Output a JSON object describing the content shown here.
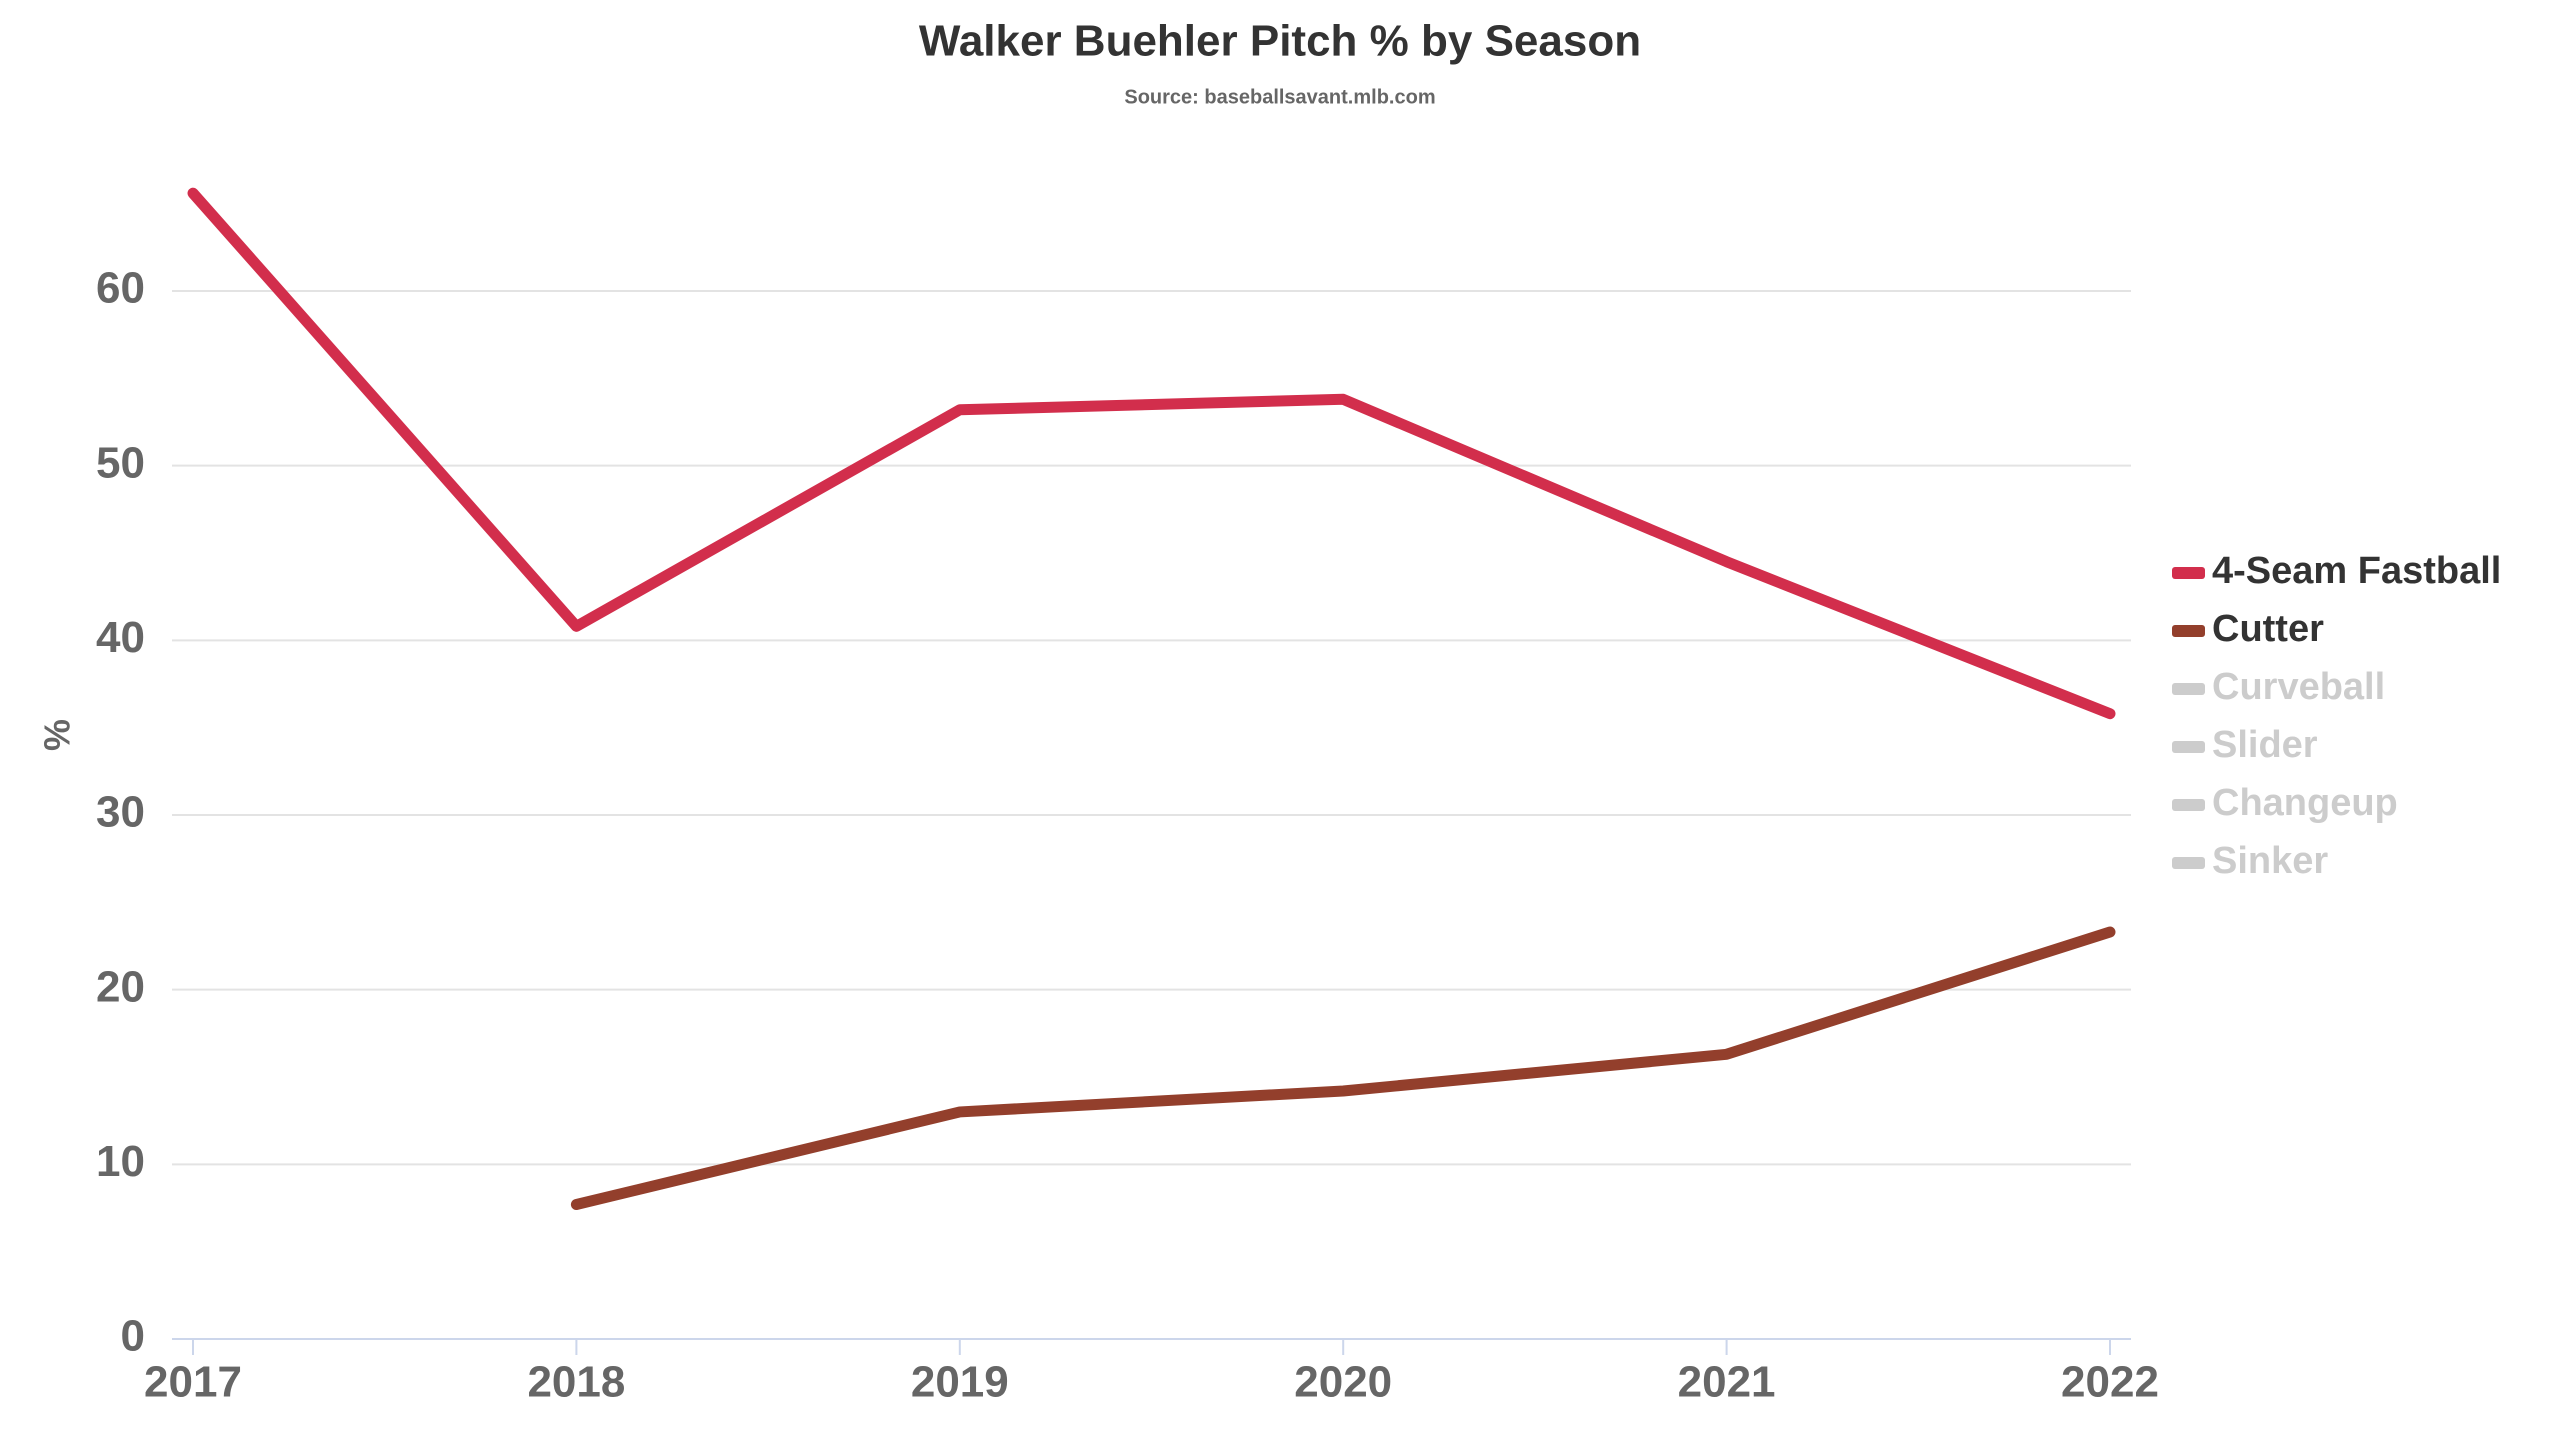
{
  "chart_data": {
    "type": "line",
    "title": "Walker Buehler Pitch % by Season",
    "subtitle": "Source: baseballsavant.mlb.com",
    "y_label": "%",
    "categories": [
      "2017",
      "2018",
      "2019",
      "2020",
      "2021",
      "2022"
    ],
    "series": [
      {
        "name": "4-Seam Fastball",
        "color": "#d22e4c",
        "visible": true,
        "values": [
          65.6,
          40.8,
          53.2,
          53.8,
          44.5,
          35.8
        ]
      },
      {
        "name": "Cutter",
        "color": "#933f2c",
        "visible": true,
        "values": [
          null,
          7.7,
          13.0,
          14.2,
          16.3,
          23.3
        ]
      },
      {
        "name": "Curveball",
        "color": "#cccccc",
        "visible": false,
        "values": [
          null,
          null,
          null,
          null,
          null,
          null
        ]
      },
      {
        "name": "Slider",
        "color": "#cccccc",
        "visible": false,
        "values": [
          null,
          null,
          null,
          null,
          null,
          null
        ]
      },
      {
        "name": "Changeup",
        "color": "#cccccc",
        "visible": false,
        "values": [
          null,
          null,
          null,
          null,
          null,
          null
        ]
      },
      {
        "name": "Sinker",
        "color": "#cccccc",
        "visible": false,
        "values": [
          null,
          null,
          null,
          null,
          null,
          null
        ]
      }
    ],
    "ylim": [
      0,
      66
    ],
    "yticks": [
      0,
      10,
      20,
      30,
      40,
      50,
      60
    ],
    "grid": true,
    "legend": "right"
  }
}
